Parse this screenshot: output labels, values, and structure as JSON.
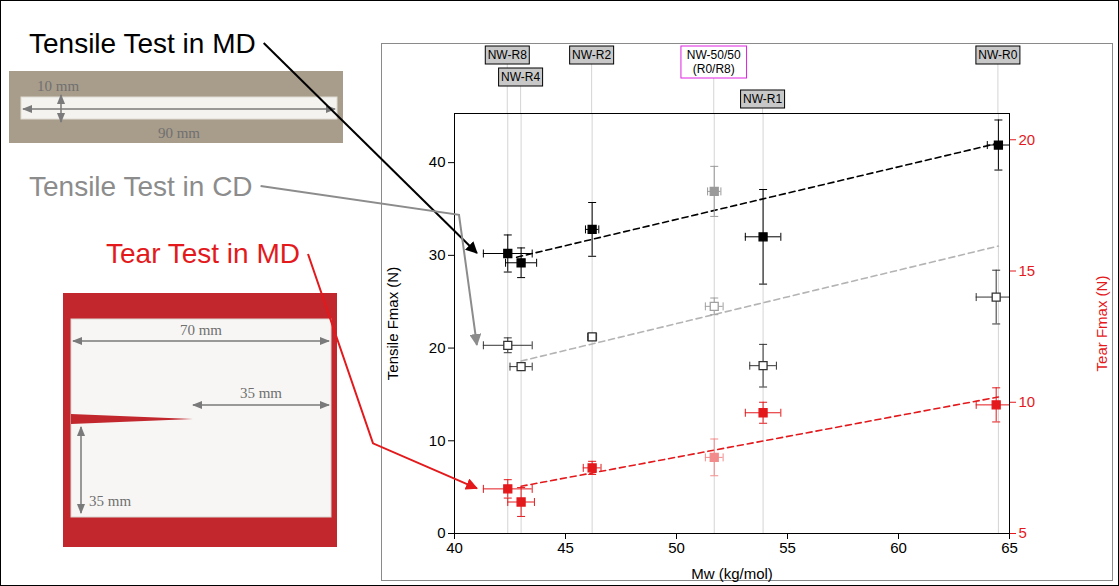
{
  "chart_data": {
    "type": "scatter",
    "x_label": "Mw (kg/mol)",
    "y_label": "Tensile Fmax (N)",
    "y2_label": "Tear Fmax (N)",
    "xlim": [
      40,
      65
    ],
    "xticks": [
      40,
      45,
      50,
      55,
      60,
      65
    ],
    "ylim": [
      0,
      45.3
    ],
    "yticks": [
      0,
      10,
      20,
      30,
      40
    ],
    "y2lim": [
      5,
      21
    ],
    "y2ticks": [
      5,
      10,
      15,
      20
    ],
    "grid": false,
    "annotations": [
      {
        "text": "NW-R8",
        "x": 42.4,
        "color": "#000000"
      },
      {
        "text": "NW-R4",
        "x": 43.0,
        "color": "#000000"
      },
      {
        "text": "NW-R2",
        "x": 46.2,
        "color": "#000000"
      },
      {
        "text": "NW-50/50 (R0/R8)",
        "x": 51.7,
        "color": "#e020e0"
      },
      {
        "text": "NW-R1",
        "x": 53.9,
        "color": "#000000"
      },
      {
        "text": "NW-R0",
        "x": 64.5,
        "color": "#000000"
      }
    ],
    "series": [
      {
        "name": "Tensile Test in MD",
        "color": "#000000",
        "marker": "square",
        "x": [
          42.4,
          43.0,
          46.2,
          51.7,
          53.9,
          64.5
        ],
        "values": [
          30.2,
          29.2,
          32.8,
          36.9,
          32.0,
          41.9
        ],
        "x_error": [
          1.1,
          0.7,
          0.3,
          0.3,
          0.8,
          0.5
        ],
        "error": [
          2.0,
          1.6,
          2.9,
          2.7,
          5.1,
          2.7
        ],
        "colors": [
          "#000000",
          "#000000",
          "#000000",
          "#9a9a9a",
          "#000000",
          "#000000"
        ],
        "specimen_dimensions": [
          "10 mm",
          "90 mm"
        ],
        "fit": {
          "x": [
            42.8,
            64.5
          ],
          "values": [
            29.8,
            42.1
          ],
          "line_style": "dashed",
          "color": "#000000"
        }
      },
      {
        "name": "Tensile Test in CD",
        "color": "#8c8c8c",
        "marker": "square-open",
        "x": [
          42.4,
          43.0,
          46.2,
          51.7,
          53.9,
          64.4
        ],
        "values": [
          20.3,
          18.0,
          21.2,
          24.5,
          18.1,
          25.5
        ],
        "x_error": [
          1.1,
          0.5,
          0.2,
          0.4,
          0.6,
          0.9
        ],
        "error": [
          0.8,
          0.3,
          0.4,
          0.9,
          2.3,
          2.9
        ],
        "colors": [
          "#333333",
          "#333333",
          "#333333",
          "#a0a0a0",
          "#333333",
          "#333333"
        ],
        "fit": {
          "x": [
            43.0,
            64.5
          ],
          "values": [
            18.6,
            31.0
          ],
          "line_style": "dashed",
          "color": "#b4b4b4"
        }
      },
      {
        "name": "Tear Test in MD",
        "color": "#e3191c",
        "marker": "square",
        "axis": "y2",
        "x": [
          42.4,
          43.0,
          46.2,
          51.7,
          53.9,
          64.4
        ],
        "values": [
          6.7,
          6.2,
          7.5,
          7.9,
          9.6,
          9.9
        ],
        "x_error": [
          1.1,
          0.6,
          0.4,
          0.4,
          0.8,
          0.9
        ],
        "error": [
          0.35,
          0.55,
          0.25,
          0.7,
          0.4,
          0.65
        ],
        "colors": [
          "#e3191c",
          "#e3191c",
          "#e3191c",
          "#f28b8b",
          "#e3191c",
          "#e3191c"
        ],
        "specimen_dimensions": [
          "70 mm",
          "35 mm",
          "35 mm"
        ],
        "fit": {
          "x": [
            43.0,
            64.5
          ],
          "values": [
            6.8,
            10.2
          ],
          "line_style": "dashed",
          "color": "#e3191c"
        }
      }
    ]
  }
}
